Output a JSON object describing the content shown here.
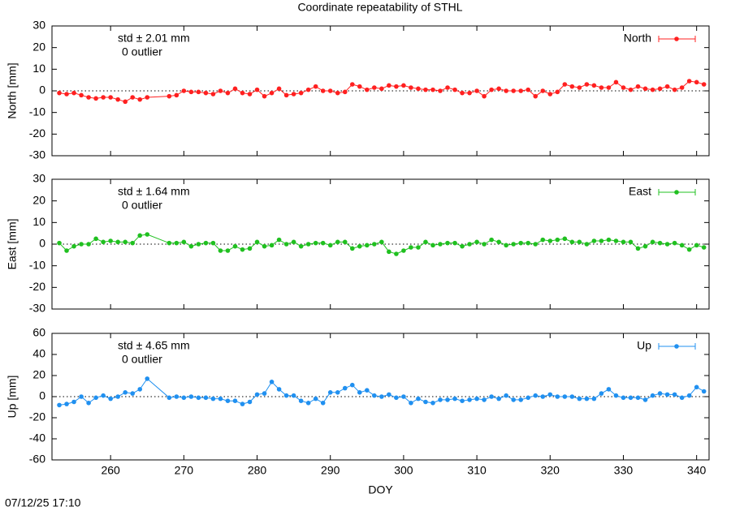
{
  "title": "Coordinate repeatability of STHL",
  "timestamp": "07/12/25 17:10",
  "chart_data": [
    {
      "type": "line",
      "ylabel": "North [mm]",
      "annotations": [
        "std ± 2.01 mm",
        "0 outlier"
      ],
      "xlim": [
        252,
        341.7
      ],
      "xticks": [
        260,
        270,
        280,
        290,
        300,
        310,
        320,
        330,
        340
      ],
      "ylim": [
        -30,
        30
      ],
      "yticks": [
        -30,
        -20,
        -10,
        0,
        10,
        20,
        30
      ],
      "zero_line": true,
      "legend": "top-right",
      "x": [
        253,
        254,
        255,
        256,
        257,
        258,
        259,
        260,
        261,
        262,
        263,
        264,
        265,
        268,
        269,
        270,
        271,
        272,
        273,
        274,
        275,
        276,
        277,
        278,
        279,
        280,
        281,
        282,
        283,
        284,
        285,
        286,
        287,
        288,
        289,
        290,
        291,
        292,
        293,
        294,
        295,
        296,
        297,
        298,
        299,
        300,
        301,
        302,
        303,
        304,
        305,
        306,
        307,
        308,
        309,
        310,
        311,
        312,
        313,
        314,
        315,
        316,
        317,
        318,
        319,
        320,
        321,
        322,
        323,
        324,
        325,
        326,
        327,
        328,
        329,
        330,
        331,
        332,
        333,
        334,
        335,
        336,
        337,
        338,
        339,
        340,
        341
      ],
      "series": [
        {
          "name": "North",
          "color": "#ff2020",
          "values": [
            -1,
            -1.5,
            -1,
            -2,
            -3,
            -3.5,
            -3,
            -3,
            -4,
            -5,
            -3,
            -4,
            -3,
            -2.5,
            -2,
            0,
            -0.5,
            -0.5,
            -1,
            -1.5,
            0,
            -1,
            1,
            -1,
            -1.5,
            0.5,
            -2.5,
            -1,
            1,
            -2,
            -1.5,
            -1,
            0.5,
            2,
            0,
            0,
            -1,
            -0.5,
            3,
            2,
            0.5,
            1.5,
            1,
            2.5,
            2,
            2.5,
            1.5,
            1,
            0.5,
            0.5,
            0,
            1.5,
            0.5,
            -1,
            -1,
            0,
            -2.5,
            0.5,
            1,
            0,
            0,
            0,
            0.5,
            -2.5,
            0,
            -1.5,
            -0.5,
            3,
            2,
            1.5,
            3,
            2.5,
            1.5,
            1.5,
            4,
            1.5,
            0.5,
            2,
            1,
            0.5,
            1,
            2,
            0.5,
            1.5,
            4.5,
            4,
            3
          ]
        }
      ]
    },
    {
      "type": "line",
      "ylabel": "East [mm]",
      "annotations": [
        "std ± 1.64 mm",
        "0 outlier"
      ],
      "xlim": [
        252,
        341.7
      ],
      "xticks": [
        260,
        270,
        280,
        290,
        300,
        310,
        320,
        330,
        340
      ],
      "ylim": [
        -30,
        30
      ],
      "yticks": [
        -30,
        -20,
        -10,
        0,
        10,
        20,
        30
      ],
      "zero_line": true,
      "legend": "top-right",
      "x": [
        253,
        254,
        255,
        256,
        257,
        258,
        259,
        260,
        261,
        262,
        263,
        264,
        265,
        268,
        269,
        270,
        271,
        272,
        273,
        274,
        275,
        276,
        277,
        278,
        279,
        280,
        281,
        282,
        283,
        284,
        285,
        286,
        287,
        288,
        289,
        290,
        291,
        292,
        293,
        294,
        295,
        296,
        297,
        298,
        299,
        300,
        301,
        302,
        303,
        304,
        305,
        306,
        307,
        308,
        309,
        310,
        311,
        312,
        313,
        314,
        315,
        316,
        317,
        318,
        319,
        320,
        321,
        322,
        323,
        324,
        325,
        326,
        327,
        328,
        329,
        330,
        331,
        332,
        333,
        334,
        335,
        336,
        337,
        338,
        339,
        340,
        341
      ],
      "series": [
        {
          "name": "East",
          "color": "#20c020",
          "values": [
            0.5,
            -3,
            -1,
            0,
            0,
            2.5,
            1,
            1.5,
            1,
            1,
            0.5,
            4,
            4.5,
            0.5,
            0.5,
            1,
            -1,
            0,
            0.5,
            0.5,
            -3,
            -3,
            -1,
            -2.5,
            -2,
            1,
            -1,
            -0.5,
            2,
            0,
            1,
            -1,
            0,
            0.5,
            0.5,
            -0.5,
            1,
            1,
            -2,
            -1,
            -0.5,
            0,
            1,
            -3.5,
            -4.5,
            -3,
            -1.5,
            -1.5,
            1,
            -0.5,
            0,
            0.5,
            0.5,
            -1,
            0,
            1,
            0,
            2,
            1,
            -0.5,
            0,
            0.5,
            0.5,
            0,
            2,
            1.5,
            2,
            2.5,
            1,
            1,
            0,
            1.5,
            1.5,
            2,
            1.5,
            1,
            1,
            -2,
            -1,
            1,
            0.5,
            0,
            0.5,
            -0.5,
            -2.5,
            -0.5,
            -1.5
          ]
        }
      ]
    },
    {
      "type": "line",
      "ylabel": "Up [mm]",
      "xlabel": "DOY",
      "annotations": [
        "std ± 4.65 mm",
        "0 outlier"
      ],
      "xlim": [
        252,
        341.7
      ],
      "xticks": [
        260,
        270,
        280,
        290,
        300,
        310,
        320,
        330,
        340
      ],
      "ylim": [
        -60,
        60
      ],
      "yticks": [
        -60,
        -40,
        -20,
        0,
        20,
        40,
        60
      ],
      "zero_line": true,
      "legend": "top-right",
      "x": [
        253,
        254,
        255,
        256,
        257,
        258,
        259,
        260,
        261,
        262,
        263,
        264,
        265,
        268,
        269,
        270,
        271,
        272,
        273,
        274,
        275,
        276,
        277,
        278,
        279,
        280,
        281,
        282,
        283,
        284,
        285,
        286,
        287,
        288,
        289,
        290,
        291,
        292,
        293,
        294,
        295,
        296,
        297,
        298,
        299,
        300,
        301,
        302,
        303,
        304,
        305,
        306,
        307,
        308,
        309,
        310,
        311,
        312,
        313,
        314,
        315,
        316,
        317,
        318,
        319,
        320,
        321,
        322,
        323,
        324,
        325,
        326,
        327,
        328,
        329,
        330,
        331,
        332,
        333,
        334,
        335,
        336,
        337,
        338,
        339,
        340,
        341
      ],
      "series": [
        {
          "name": "Up",
          "color": "#2090f0",
          "values": [
            -8,
            -7,
            -5,
            0,
            -6,
            -1,
            1,
            -2,
            0,
            4,
            3,
            7,
            17,
            -1,
            0,
            -1,
            0,
            -1,
            -1,
            -2,
            -2,
            -4,
            -4,
            -7,
            -5,
            2,
            3,
            14,
            7,
            1,
            1,
            -4,
            -6,
            -2,
            -6,
            4,
            4,
            8,
            11,
            4,
            6,
            1,
            0,
            2,
            -1,
            0,
            -6,
            -2,
            -5,
            -6,
            -3,
            -3,
            -2,
            -4,
            -3,
            -2,
            -3,
            0,
            -2,
            1,
            -3,
            -3,
            -1,
            1,
            0,
            2,
            0,
            0,
            0,
            -2,
            -2,
            -2,
            3,
            7,
            1,
            -1,
            -1,
            -1,
            -3,
            1,
            3,
            2,
            2,
            -1,
            1,
            9,
            5
          ]
        }
      ]
    }
  ]
}
